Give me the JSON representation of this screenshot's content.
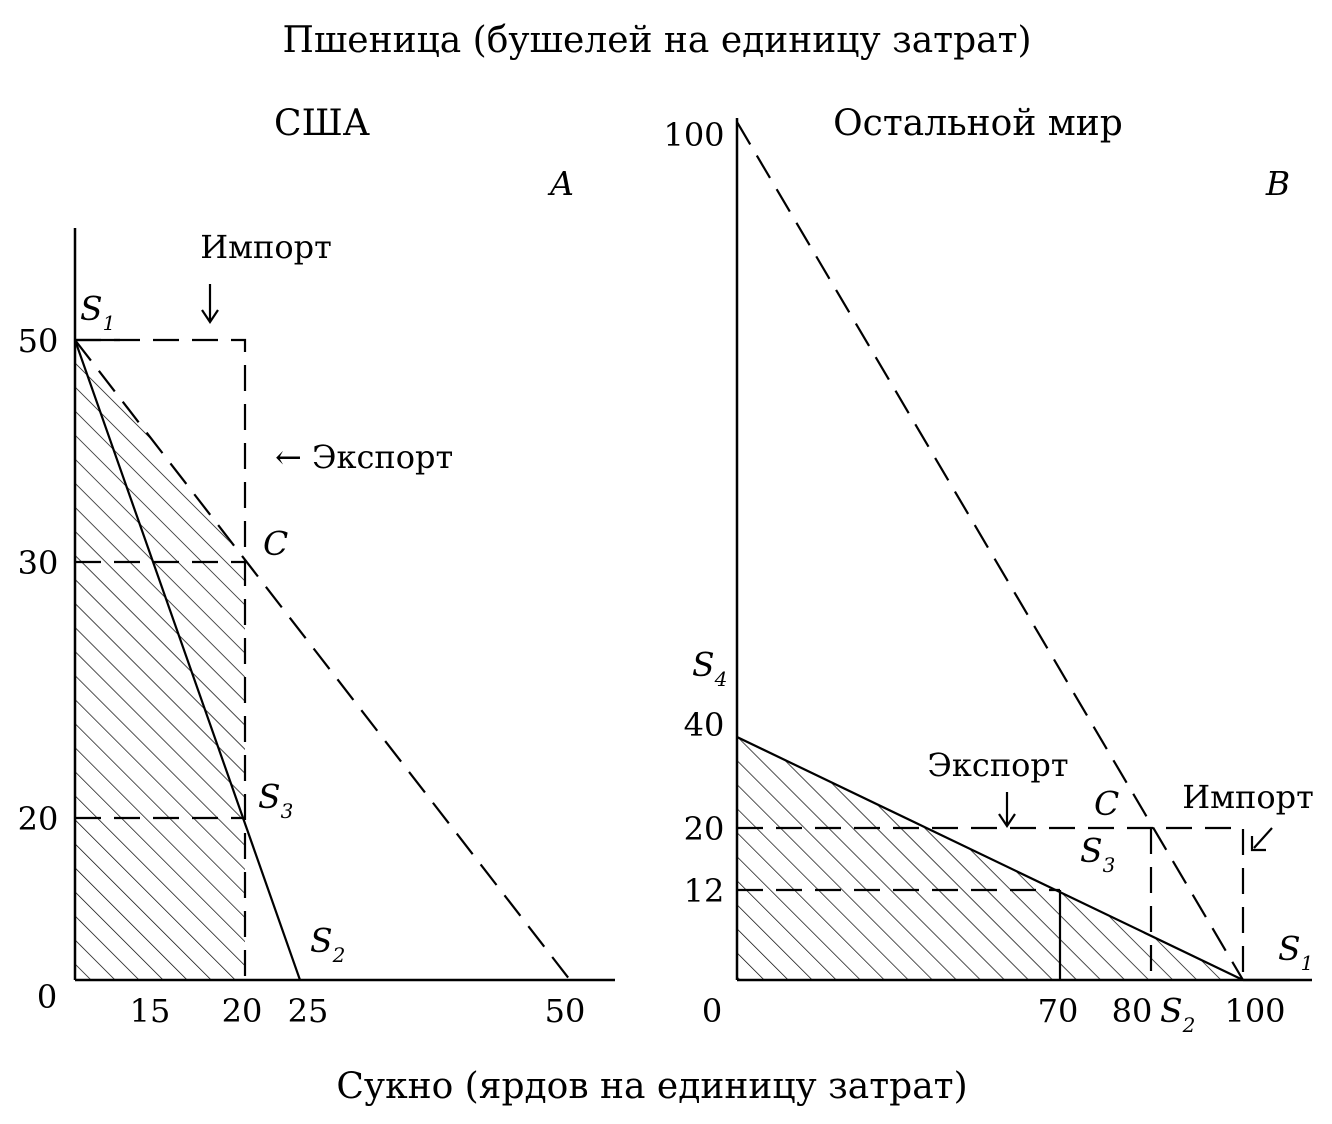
{
  "title": "Пшеница (бушелей на единицу затрат)",
  "xlabel": "Сукно (ярдов на единицу затрат)",
  "chart_data": [
    {
      "type": "line",
      "panel": "A",
      "title": "США",
      "x_ticks": [
        "15",
        "20",
        "25",
        "50"
      ],
      "y_ticks": [
        "0",
        "20",
        "30",
        "50"
      ],
      "xlim": [
        10,
        55
      ],
      "ylim": [
        0,
        60
      ],
      "series": [
        {
          "label": "S1-S2",
          "style": "solid",
          "x": [
            10,
            25
          ],
          "y": [
            50,
            0
          ]
        },
        {
          "label": "S1-50",
          "style": "dashed",
          "x": [
            10,
            50
          ],
          "y": [
            50,
            0
          ]
        }
      ],
      "points": [
        {
          "label": "S",
          "sub": "1",
          "x": 10,
          "y": 50
        },
        {
          "label": "C",
          "sub": "",
          "x": 20,
          "y": 30
        },
        {
          "label": "S",
          "sub": "3",
          "x": 20,
          "y": 20
        },
        {
          "label": "S",
          "sub": "2",
          "x": 25,
          "y": 0
        }
      ],
      "trade_box": {
        "x": [
          10,
          20
        ],
        "y": [
          30,
          50
        ]
      },
      "import_label": "Импорт",
      "export_label": "← Экспорт"
    },
    {
      "type": "line",
      "panel": "B",
      "title": "Остальной мир",
      "x_ticks": [
        "70",
        "80",
        "100"
      ],
      "y_ticks": [
        "0",
        "12",
        "20",
        "40",
        "100"
      ],
      "xlim": [
        0,
        110
      ],
      "ylim": [
        0,
        105
      ],
      "series": [
        {
          "label": "S4-S1",
          "style": "solid",
          "x": [
            0,
            100
          ],
          "y": [
            37,
            0
          ]
        },
        {
          "label": "100-S1",
          "style": "dashed",
          "x": [
            0,
            100
          ],
          "y": [
            100,
            0
          ]
        }
      ],
      "points": [
        {
          "label": "S",
          "sub": "4",
          "x": 0,
          "y": 37
        },
        {
          "label": "C",
          "sub": "",
          "x": 82,
          "y": 20
        },
        {
          "label": "S",
          "sub": "3",
          "x": 68,
          "y": 12
        },
        {
          "label": "S",
          "sub": "2",
          "x": 84,
          "y": 0
        },
        {
          "label": "S",
          "sub": "1",
          "x": 100,
          "y": 0
        }
      ],
      "trade_box": {
        "x": [
          82,
          100
        ],
        "y": [
          0,
          20
        ]
      },
      "import_label": "Импорт",
      "export_label": "Экспорт"
    }
  ]
}
